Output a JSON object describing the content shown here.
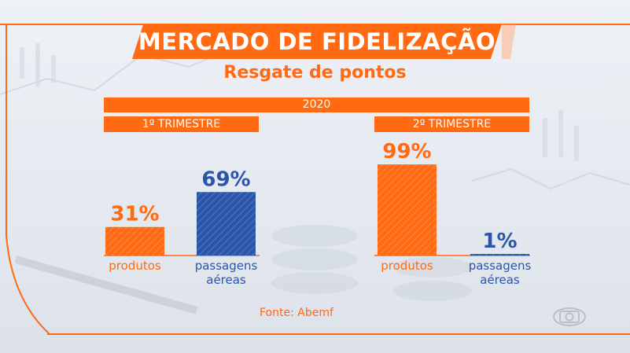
{
  "header": {
    "title": "MERCADO DE FIDELIZAÇÃO",
    "subtitle": "Resgate de pontos"
  },
  "year_label": "2020",
  "quarters": [
    "1º TRIMESTRE",
    "2º TRIMESTRE"
  ],
  "source": "Fonte: Abemf",
  "colors": {
    "accent": "#ff6a12",
    "produtos": "#ff6a12",
    "passagens": "#2a55a8"
  },
  "chart_data": {
    "type": "bar",
    "title": "Resgate de pontos",
    "ylim": [
      0,
      100
    ],
    "grid": false,
    "groups": [
      {
        "label": "1º TRIMESTRE",
        "bars": [
          {
            "category": "produtos",
            "label_lines": [
              "produtos"
            ],
            "value": 31,
            "value_label": "31%",
            "color": "#ff6a12"
          },
          {
            "category": "passagens aéreas",
            "label_lines": [
              "passagens",
              "aéreas"
            ],
            "value": 69,
            "value_label": "69%",
            "color": "#2a55a8"
          }
        ]
      },
      {
        "label": "2º TRIMESTRE",
        "bars": [
          {
            "category": "produtos",
            "label_lines": [
              "produtos"
            ],
            "value": 99,
            "value_label": "99%",
            "color": "#ff6a12"
          },
          {
            "category": "passagens aéreas",
            "label_lines": [
              "passagens",
              "aéreas"
            ],
            "value": 1,
            "value_label": "1%",
            "color": "#2a55a8"
          }
        ]
      }
    ]
  }
}
